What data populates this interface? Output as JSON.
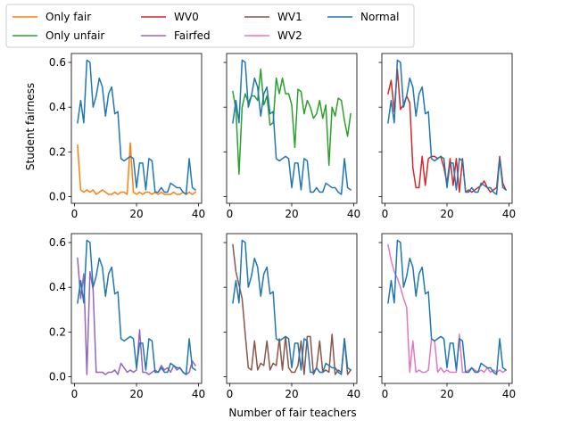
{
  "figure": {
    "xlabel": "Number of fair teachers",
    "ylabel": "Student fairness"
  },
  "legend": [
    {
      "label": "Only fair",
      "color": "#ff7f0e"
    },
    {
      "label": "Only unfair",
      "color": "#2ca02c"
    },
    {
      "label": "WV0",
      "color": "#d62728"
    },
    {
      "label": "Fairfed",
      "color": "#9467bd"
    },
    {
      "label": "WV1",
      "color": "#8c564b"
    },
    {
      "label": "WV2",
      "color": "#e377c2"
    },
    {
      "label": "Normal",
      "color": "#1f77b4"
    }
  ],
  "chart_data": [
    {
      "type": "line",
      "xlim": [
        -1,
        41
      ],
      "ylim": [
        -0.03,
        0.64
      ],
      "xticks": [
        0,
        20,
        40
      ],
      "yticks": [
        0.0,
        0.2,
        0.4,
        0.6
      ],
      "x": [
        1,
        2,
        3,
        4,
        5,
        6,
        7,
        8,
        9,
        10,
        11,
        12,
        13,
        14,
        15,
        16,
        17,
        18,
        19,
        20,
        21,
        22,
        23,
        24,
        25,
        26,
        27,
        28,
        29,
        30,
        31,
        32,
        33,
        34,
        35,
        36,
        37,
        38,
        39
      ],
      "series": [
        {
          "name": "Only fair",
          "color": "#ff7f0e",
          "values": [
            0.23,
            0.03,
            0.02,
            0.03,
            0.02,
            0.03,
            0.01,
            0.02,
            0.03,
            0.02,
            0.01,
            0.01,
            0.02,
            0.01,
            0.02,
            0.02,
            0.01,
            0.24,
            0.02,
            0.01,
            0.02,
            0.01,
            0.02,
            0.02,
            0.01,
            0.02,
            0.01,
            0.02,
            0.01,
            0.01,
            0.01,
            0.02,
            0.01,
            0.01,
            0.02,
            0.01,
            0.02,
            0.01,
            0.02
          ]
        },
        {
          "name": "Normal",
          "color": "#1f77b4",
          "values": [
            0.33,
            0.43,
            0.33,
            0.61,
            0.6,
            0.4,
            0.45,
            0.53,
            0.49,
            0.36,
            0.46,
            0.49,
            0.37,
            0.38,
            0.17,
            0.16,
            0.17,
            0.18,
            0.17,
            0.04,
            0.15,
            0.15,
            0.03,
            0.17,
            0.16,
            0.02,
            0.02,
            0.04,
            0.02,
            0.02,
            0.06,
            0.05,
            0.04,
            0.04,
            0.02,
            0.01,
            0.17,
            0.04,
            0.03
          ]
        }
      ]
    },
    {
      "type": "line",
      "xlim": [
        -1,
        41
      ],
      "ylim": [
        -0.03,
        0.64
      ],
      "xticks": [
        0,
        20,
        40
      ],
      "yticks": [
        0.0,
        0.2,
        0.4,
        0.6
      ],
      "x": [
        1,
        2,
        3,
        4,
        5,
        6,
        7,
        8,
        9,
        10,
        11,
        12,
        13,
        14,
        15,
        16,
        17,
        18,
        19,
        20,
        21,
        22,
        23,
        24,
        25,
        26,
        27,
        28,
        29,
        30,
        31,
        32,
        33,
        34,
        35,
        36,
        37,
        38,
        39
      ],
      "series": [
        {
          "name": "Only unfair",
          "color": "#2ca02c",
          "values": [
            0.47,
            0.39,
            0.1,
            0.4,
            0.46,
            0.42,
            0.45,
            0.45,
            0.43,
            0.57,
            0.41,
            0.45,
            0.32,
            0.33,
            0.53,
            0.46,
            0.53,
            0.46,
            0.46,
            0.41,
            0.22,
            0.48,
            0.47,
            0.37,
            0.43,
            0.4,
            0.35,
            0.37,
            0.43,
            0.35,
            0.41,
            0.14,
            0.4,
            0.36,
            0.44,
            0.43,
            0.34,
            0.27,
            0.37
          ]
        },
        {
          "name": "Normal",
          "color": "#1f77b4",
          "values": [
            0.33,
            0.43,
            0.33,
            0.61,
            0.6,
            0.4,
            0.45,
            0.53,
            0.49,
            0.36,
            0.46,
            0.49,
            0.37,
            0.38,
            0.17,
            0.16,
            0.17,
            0.18,
            0.17,
            0.04,
            0.15,
            0.15,
            0.03,
            0.17,
            0.16,
            0.02,
            0.02,
            0.04,
            0.02,
            0.02,
            0.06,
            0.05,
            0.04,
            0.04,
            0.02,
            0.01,
            0.17,
            0.04,
            0.03
          ]
        }
      ]
    },
    {
      "type": "line",
      "xlim": [
        -1,
        41
      ],
      "ylim": [
        -0.03,
        0.64
      ],
      "xticks": [
        0,
        20,
        40
      ],
      "yticks": [
        0.0,
        0.2,
        0.4,
        0.6
      ],
      "x": [
        1,
        2,
        3,
        4,
        5,
        6,
        7,
        8,
        9,
        10,
        11,
        12,
        13,
        14,
        15,
        16,
        17,
        18,
        19,
        20,
        21,
        22,
        23,
        24,
        25,
        26,
        27,
        28,
        29,
        30,
        31,
        32,
        33,
        34,
        35,
        36,
        37,
        38,
        39
      ],
      "series": [
        {
          "name": "WV0",
          "color": "#d62728",
          "values": [
            0.46,
            0.52,
            0.38,
            0.57,
            0.39,
            0.41,
            0.45,
            0.42,
            0.13,
            0.04,
            0.04,
            0.18,
            0.05,
            0.17,
            0.18,
            0.18,
            0.17,
            0.18,
            0.13,
            0.06,
            0.17,
            0.05,
            0.17,
            0.02,
            0.17,
            0.02,
            0.03,
            0.02,
            0.03,
            0.04,
            0.05,
            0.07,
            0.04,
            0.02,
            0.03,
            0.04,
            0.18,
            0.06,
            0.03
          ]
        },
        {
          "name": "Normal",
          "color": "#1f77b4",
          "values": [
            0.33,
            0.43,
            0.33,
            0.61,
            0.6,
            0.4,
            0.45,
            0.53,
            0.49,
            0.36,
            0.46,
            0.49,
            0.37,
            0.38,
            0.17,
            0.16,
            0.17,
            0.18,
            0.17,
            0.04,
            0.15,
            0.15,
            0.03,
            0.17,
            0.16,
            0.02,
            0.02,
            0.04,
            0.02,
            0.02,
            0.06,
            0.05,
            0.04,
            0.04,
            0.02,
            0.01,
            0.17,
            0.04,
            0.03
          ]
        }
      ]
    },
    {
      "type": "line",
      "xlim": [
        -1,
        41
      ],
      "ylim": [
        -0.03,
        0.64
      ],
      "xticks": [
        0,
        20,
        40
      ],
      "yticks": [
        0.0,
        0.2,
        0.4,
        0.6
      ],
      "x": [
        1,
        2,
        3,
        4,
        5,
        6,
        7,
        8,
        9,
        10,
        11,
        12,
        13,
        14,
        15,
        16,
        17,
        18,
        19,
        20,
        21,
        22,
        23,
        24,
        25,
        26,
        27,
        28,
        29,
        30,
        31,
        32,
        33,
        34,
        35,
        36,
        37,
        38,
        39
      ],
      "series": [
        {
          "name": "Fairfed",
          "color": "#9467bd",
          "values": [
            0.53,
            0.35,
            0.46,
            0.01,
            0.47,
            0.39,
            0.02,
            0.02,
            0.02,
            0.01,
            0.02,
            0.02,
            0.03,
            0.01,
            0.06,
            0.04,
            0.02,
            0.03,
            0.02,
            0.03,
            0.21,
            0.02,
            0.02,
            0.01,
            0.02,
            0.03,
            0.02,
            0.05,
            0.03,
            0.04,
            0.02,
            0.05,
            0.03,
            0.04,
            0.02,
            0.01,
            0.02,
            0.07,
            0.05
          ]
        },
        {
          "name": "Normal",
          "color": "#1f77b4",
          "values": [
            0.33,
            0.43,
            0.33,
            0.61,
            0.6,
            0.4,
            0.45,
            0.53,
            0.49,
            0.36,
            0.46,
            0.49,
            0.37,
            0.38,
            0.17,
            0.16,
            0.17,
            0.18,
            0.17,
            0.04,
            0.15,
            0.15,
            0.03,
            0.17,
            0.16,
            0.02,
            0.02,
            0.04,
            0.02,
            0.02,
            0.06,
            0.05,
            0.04,
            0.04,
            0.02,
            0.01,
            0.17,
            0.04,
            0.03
          ]
        }
      ]
    },
    {
      "type": "line",
      "xlim": [
        -1,
        41
      ],
      "ylim": [
        -0.03,
        0.64
      ],
      "xticks": [
        0,
        20,
        40
      ],
      "yticks": [
        0.0,
        0.2,
        0.4,
        0.6
      ],
      "x": [
        1,
        2,
        3,
        4,
        5,
        6,
        7,
        8,
        9,
        10,
        11,
        12,
        13,
        14,
        15,
        16,
        17,
        18,
        19,
        20,
        21,
        22,
        23,
        24,
        25,
        26,
        27,
        28,
        29,
        30,
        31,
        32,
        33,
        34,
        35,
        36,
        37,
        38,
        39
      ],
      "series": [
        {
          "name": "WV1",
          "color": "#8c564b",
          "values": [
            0.59,
            0.47,
            0.41,
            0.35,
            0.19,
            0.04,
            0.03,
            0.16,
            0.03,
            0.06,
            0.05,
            0.16,
            0.03,
            0.06,
            0.05,
            0.17,
            0.03,
            0.18,
            0.04,
            0.02,
            0.02,
            0.05,
            0.16,
            0.01,
            0.18,
            0.18,
            0.01,
            0.04,
            0.16,
            0.02,
            0.03,
            0.02,
            0.19,
            0.01,
            0.03,
            0.02,
            0.17,
            0.01,
            0.03
          ]
        },
        {
          "name": "Normal",
          "color": "#1f77b4",
          "values": [
            0.33,
            0.43,
            0.33,
            0.61,
            0.6,
            0.4,
            0.45,
            0.53,
            0.49,
            0.36,
            0.46,
            0.49,
            0.37,
            0.38,
            0.17,
            0.16,
            0.17,
            0.18,
            0.17,
            0.04,
            0.15,
            0.15,
            0.03,
            0.17,
            0.16,
            0.02,
            0.02,
            0.04,
            0.02,
            0.02,
            0.06,
            0.05,
            0.04,
            0.04,
            0.02,
            0.01,
            0.17,
            0.04,
            0.03
          ]
        }
      ]
    },
    {
      "type": "line",
      "xlim": [
        -1,
        41
      ],
      "ylim": [
        -0.03,
        0.64
      ],
      "xticks": [
        0,
        20,
        40
      ],
      "yticks": [
        0.0,
        0.2,
        0.4,
        0.6
      ],
      "x": [
        1,
        2,
        3,
        4,
        5,
        6,
        7,
        8,
        9,
        10,
        11,
        12,
        13,
        14,
        15,
        16,
        17,
        18,
        19,
        20,
        21,
        22,
        23,
        24,
        25,
        26,
        27,
        28,
        29,
        30,
        31,
        32,
        33,
        34,
        35,
        36,
        37,
        38,
        39
      ],
      "series": [
        {
          "name": "WV2",
          "color": "#e377c2",
          "values": [
            0.59,
            0.52,
            0.47,
            0.44,
            0.4,
            0.35,
            0.31,
            0.02,
            0.16,
            0.02,
            0.03,
            0.02,
            0.02,
            0.03,
            0.17,
            0.16,
            0.02,
            0.04,
            0.02,
            0.03,
            0.02,
            0.02,
            0.02,
            0.19,
            0.02,
            0.02,
            0.03,
            0.04,
            0.03,
            0.02,
            0.03,
            0.02,
            0.04,
            0.02,
            0.03,
            0.02,
            0.03,
            0.02,
            0.03
          ]
        },
        {
          "name": "Normal",
          "color": "#1f77b4",
          "values": [
            0.33,
            0.43,
            0.33,
            0.61,
            0.6,
            0.4,
            0.45,
            0.53,
            0.49,
            0.36,
            0.46,
            0.49,
            0.37,
            0.38,
            0.17,
            0.16,
            0.17,
            0.18,
            0.17,
            0.04,
            0.15,
            0.15,
            0.03,
            0.17,
            0.16,
            0.02,
            0.02,
            0.04,
            0.02,
            0.02,
            0.06,
            0.05,
            0.04,
            0.04,
            0.02,
            0.01,
            0.17,
            0.04,
            0.03
          ]
        }
      ]
    }
  ]
}
